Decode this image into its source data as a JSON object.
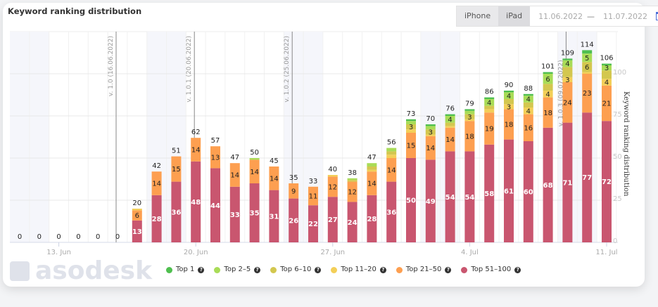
{
  "header": {
    "title": "Keyword ranking distribution",
    "devices": [
      "iPhone",
      "iPad"
    ],
    "date_from": "11.06.2022",
    "date_sep": "—",
    "date_to": "11.07.2022"
  },
  "watermark": "asodesk",
  "chart_data": {
    "type": "bar",
    "stacked": true,
    "categories": [
      "11.06",
      "12.06",
      "13.06",
      "14.06",
      "15.06",
      "16.06",
      "17.06",
      "18.06",
      "19.06",
      "20.06",
      "21.06",
      "22.06",
      "23.06",
      "24.06",
      "25.06",
      "26.06",
      "27.06",
      "28.06",
      "29.06",
      "30.06",
      "01.07",
      "02.07",
      "03.07",
      "04.07",
      "05.07",
      "06.07",
      "07.07",
      "08.07",
      "09.07",
      "10.07",
      "11.07"
    ],
    "x_tick_labels": [
      {
        "index": 2,
        "label": "13. Jun"
      },
      {
        "index": 9,
        "label": "20. Jun"
      },
      {
        "index": 16,
        "label": "27. Jun"
      },
      {
        "index": 23,
        "label": "4. Jul"
      },
      {
        "index": 30,
        "label": "11. Jul"
      }
    ],
    "ylabel": "Keyword ranking distribution",
    "ylim": [
      0,
      120
    ],
    "y_ticks": [
      0,
      25,
      50,
      75,
      100
    ],
    "y_axis_side": "right",
    "grid": true,
    "legend": "bottom",
    "weekends": [
      [
        0,
        1
      ],
      [
        7,
        8
      ],
      [
        14,
        15
      ],
      [
        21,
        22
      ],
      [
        28,
        29
      ]
    ],
    "totals": [
      0,
      0,
      0,
      0,
      0,
      0,
      20,
      42,
      51,
      62,
      57,
      47,
      50,
      45,
      35,
      33,
      40,
      38,
      47,
      56,
      73,
      70,
      76,
      79,
      86,
      90,
      88,
      101,
      109,
      114,
      106
    ],
    "series": [
      {
        "name": "Top 1",
        "color": "#4fbf4f",
        "values": [
          0,
          0,
          0,
          0,
          0,
          0,
          0,
          0,
          0,
          0,
          0,
          0,
          0,
          0,
          0,
          0,
          0,
          0,
          0,
          0,
          1,
          1,
          1,
          1,
          1,
          1,
          1,
          1,
          1,
          2,
          1
        ]
      },
      {
        "name": "Top 2–5",
        "color": "#a9dc57",
        "values": [
          0,
          0,
          0,
          0,
          0,
          0,
          0,
          0,
          0,
          0,
          0,
          0,
          1,
          0,
          0,
          0,
          0,
          1,
          2,
          2,
          2,
          2,
          4,
          2,
          4,
          4,
          4,
          6,
          4,
          5,
          3
        ]
      },
      {
        "name": "Top 6–10",
        "color": "#d3c74f",
        "values": [
          0,
          0,
          0,
          0,
          0,
          0,
          0,
          0,
          0,
          0,
          0,
          0,
          0,
          0,
          0,
          0,
          0,
          1,
          2,
          2,
          3,
          3,
          2,
          3,
          2,
          3,
          3,
          4,
          6,
          6,
          5
        ]
      },
      {
        "name": "Top 11–20",
        "color": "#f3cf58",
        "values": [
          0,
          0,
          0,
          0,
          0,
          0,
          1,
          0,
          0,
          0,
          0,
          0,
          0,
          0,
          0,
          0,
          1,
          0,
          1,
          2,
          2,
          1,
          1,
          1,
          2,
          3,
          4,
          4,
          3,
          1,
          4
        ]
      },
      {
        "name": "Top 21–50",
        "color": "#fd9f50",
        "values": [
          0,
          0,
          0,
          0,
          0,
          0,
          6,
          14,
          15,
          14,
          13,
          14,
          14,
          14,
          9,
          11,
          12,
          12,
          14,
          14,
          15,
          14,
          14,
          18,
          19,
          18,
          16,
          18,
          24,
          23,
          21
        ]
      },
      {
        "name": "Top 51–100",
        "color": "#c9566f",
        "values": [
          0,
          0,
          0,
          0,
          0,
          0,
          13,
          28,
          36,
          48,
          44,
          33,
          35,
          31,
          26,
          22,
          27,
          24,
          28,
          36,
          50,
          49,
          54,
          54,
          58,
          61,
          60,
          68,
          71,
          77,
          72
        ]
      }
    ],
    "annotations": [
      {
        "index": 5,
        "label": "v. 1.0 (16.06.2022)"
      },
      {
        "index": 9,
        "label": "v. 1.0.1 (20.06.2022)"
      },
      {
        "index": 14,
        "label": "v. 1.0.2 (25.06.2022)"
      },
      {
        "index": 28,
        "label": "v. 1.0.3 (09.07.2022)"
      }
    ]
  }
}
